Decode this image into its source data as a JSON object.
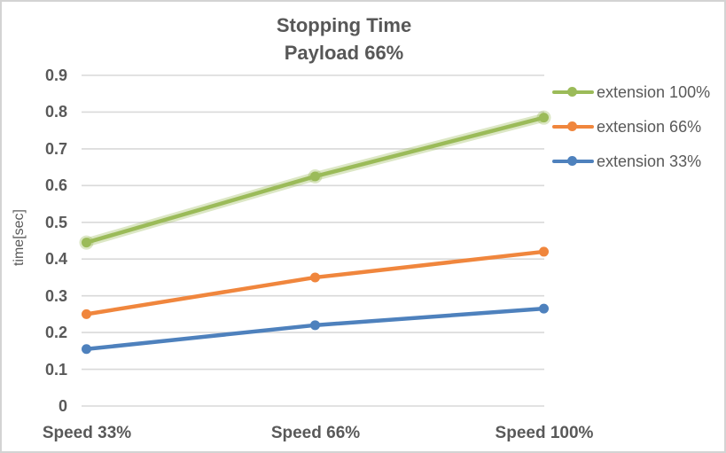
{
  "title": {
    "line1": "Stopping Time",
    "line2": "Payload 66%"
  },
  "chart_data": {
    "type": "line",
    "title": "Stopping Time Payload 66%",
    "xlabel": "",
    "ylabel": "time[sec]",
    "categories": [
      "Speed 33%",
      "Speed 66%",
      "Speed 100%"
    ],
    "series": [
      {
        "name": "extension 100%",
        "color": "#9BBB59",
        "glow": true,
        "values": [
          0.445,
          0.625,
          0.785
        ]
      },
      {
        "name": "extension 66%",
        "color": "#F0863D",
        "glow": false,
        "values": [
          0.25,
          0.35,
          0.42
        ]
      },
      {
        "name": "extension 33%",
        "color": "#4E81BD",
        "glow": false,
        "values": [
          0.155,
          0.22,
          0.265
        ]
      }
    ],
    "ylim": [
      0,
      0.9
    ],
    "yticks": [
      "0.9",
      "0.8",
      "0.7",
      "0.6",
      "0.5",
      "0.4",
      "0.3",
      "0.2",
      "0.1",
      "0"
    ],
    "grid": true,
    "legend_position": "right",
    "marker": "circle"
  },
  "colors": {
    "text": "#595959",
    "grid": "#D9D9D9",
    "border": "#D3D3D3",
    "background": "#FFFFFF"
  }
}
